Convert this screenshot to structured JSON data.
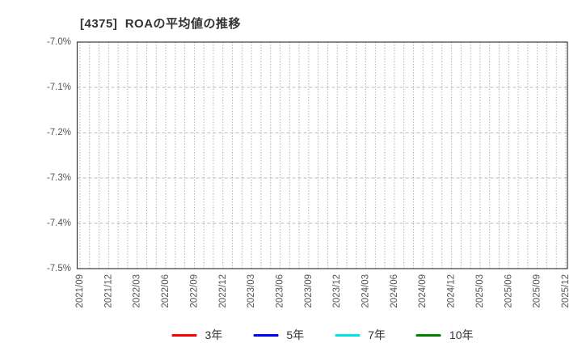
{
  "title": "[4375]  ROAの平均値の推移",
  "chart_data": {
    "type": "line",
    "title": "[4375]  ROAの平均値の推移",
    "categories": [
      "2021/09",
      "2021/12",
      "2022/03",
      "2022/06",
      "2022/09",
      "2022/12",
      "2023/03",
      "2023/06",
      "2023/09",
      "2023/12",
      "2024/03",
      "2024/06",
      "2024/09",
      "2024/12",
      "2025/03",
      "2025/06",
      "2025/09",
      "2025/12"
    ],
    "series": [
      {
        "name": "3年",
        "color": "#ff0000",
        "values": []
      },
      {
        "name": "5年",
        "color": "#0000ff",
        "values": []
      },
      {
        "name": "7年",
        "color": "#00e5e5",
        "values": []
      },
      {
        "name": "10年",
        "color": "#008000",
        "values": []
      }
    ],
    "note": "plot area is empty - no data lines are drawn within the visible axis range",
    "xlabel": "",
    "ylabel": "",
    "ylim": [
      -7.5,
      -7.0
    ],
    "y_ticks": [
      "-7.0%",
      "-7.1%",
      "-7.2%",
      "-7.3%",
      "-7.4%",
      "-7.5%"
    ],
    "grid": true,
    "x_minor_divisions": 3,
    "legend_position": "bottom"
  },
  "legend": {
    "items": [
      {
        "label": "3年",
        "color": "#ff0000"
      },
      {
        "label": "5年",
        "color": "#0000ff"
      },
      {
        "label": "7年",
        "color": "#00e5e5"
      },
      {
        "label": "10年",
        "color": "#008000"
      }
    ]
  },
  "colors": {
    "background": "#ffffff",
    "title_text": "#333333",
    "tick_text": "#555555",
    "axis_frame": "#3a3a3a",
    "grid_vertical": "#999999",
    "grid_horizontal": "#bbbbbb"
  }
}
